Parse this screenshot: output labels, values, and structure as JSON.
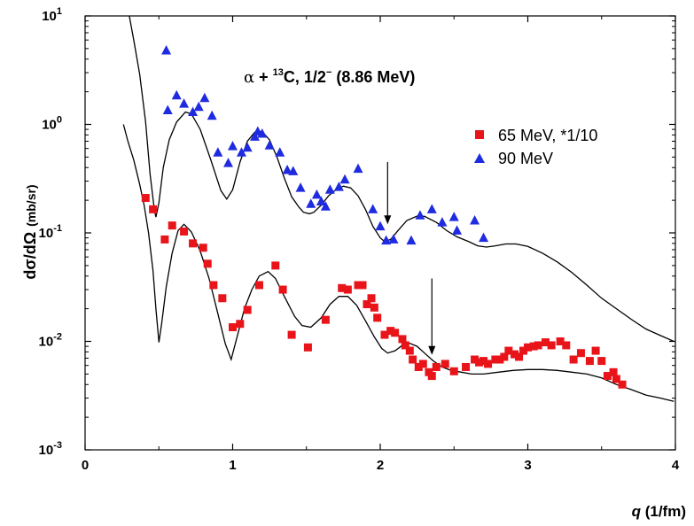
{
  "chart_data": {
    "type": "scatter",
    "title": "",
    "annotation": {
      "alpha": "α",
      "plus": " + ",
      "mass": "13",
      "element": "C,  1/2",
      "superscript": "−",
      "state": " (8.86 MeV)"
    },
    "xlabel": {
      "italic": "q",
      "rest": " (1/fm)"
    },
    "ylabel": {
      "main": "dσ/dΩ",
      "unit": "(mb/sr)"
    },
    "x_range": [
      0,
      4
    ],
    "y_range": [
      0.001,
      10
    ],
    "y_scale": "log",
    "grid": false,
    "legend_position": "top-right",
    "x_ticks": [
      "0",
      "1",
      "2",
      "3",
      "4"
    ],
    "y_ticks": [
      {
        "value": 0.001,
        "base": "10",
        "exp": "-3"
      },
      {
        "value": 0.01,
        "base": "10",
        "exp": "-2"
      },
      {
        "value": 0.1,
        "base": "10",
        "exp": "-1"
      },
      {
        "value": 1,
        "base": "10",
        "exp": "0"
      },
      {
        "value": 10,
        "base": "10",
        "exp": "1"
      }
    ],
    "series": [
      {
        "name": "65 MeV, *1/10",
        "marker": "square",
        "color": "#e8141a",
        "points": [
          [
            0.41,
            0.21
          ],
          [
            0.46,
            0.165
          ],
          [
            0.54,
            0.087
          ],
          [
            0.59,
            0.117
          ],
          [
            0.67,
            0.103
          ],
          [
            0.73,
            0.08
          ],
          [
            0.8,
            0.073
          ],
          [
            0.83,
            0.052
          ],
          [
            0.87,
            0.033
          ],
          [
            0.93,
            0.025
          ],
          [
            1.0,
            0.0135
          ],
          [
            1.05,
            0.0145
          ],
          [
            1.1,
            0.0195
          ],
          [
            1.18,
            0.033
          ],
          [
            1.29,
            0.05
          ],
          [
            1.34,
            0.03
          ],
          [
            1.4,
            0.0115
          ],
          [
            1.51,
            0.0088
          ],
          [
            1.63,
            0.0158
          ],
          [
            1.74,
            0.031
          ],
          [
            1.78,
            0.03
          ],
          [
            1.85,
            0.033
          ],
          [
            1.88,
            0.033
          ],
          [
            1.91,
            0.022
          ],
          [
            1.94,
            0.025
          ],
          [
            1.96,
            0.0205
          ],
          [
            1.98,
            0.0165
          ],
          [
            2.03,
            0.0115
          ],
          [
            2.07,
            0.0125
          ],
          [
            2.1,
            0.012
          ],
          [
            2.15,
            0.0105
          ],
          [
            2.17,
            0.0092
          ],
          [
            2.2,
            0.0082
          ],
          [
            2.22,
            0.0068
          ],
          [
            2.26,
            0.0058
          ],
          [
            2.29,
            0.0062
          ],
          [
            2.33,
            0.0052
          ],
          [
            2.35,
            0.0048
          ],
          [
            2.38,
            0.0058
          ],
          [
            2.44,
            0.0062
          ],
          [
            2.5,
            0.0053
          ],
          [
            2.58,
            0.0058
          ],
          [
            2.64,
            0.0068
          ],
          [
            2.67,
            0.0064
          ],
          [
            2.7,
            0.0066
          ],
          [
            2.73,
            0.0062
          ],
          [
            2.78,
            0.0068
          ],
          [
            2.81,
            0.0068
          ],
          [
            2.84,
            0.0072
          ],
          [
            2.87,
            0.0082
          ],
          [
            2.91,
            0.0076
          ],
          [
            2.94,
            0.0072
          ],
          [
            2.97,
            0.0082
          ],
          [
            3.0,
            0.0088
          ],
          [
            3.04,
            0.009
          ],
          [
            3.07,
            0.0092
          ],
          [
            3.12,
            0.0098
          ],
          [
            3.16,
            0.0092
          ],
          [
            3.22,
            0.01
          ],
          [
            3.26,
            0.0092
          ],
          [
            3.31,
            0.0068
          ],
          [
            3.36,
            0.0078
          ],
          [
            3.42,
            0.0066
          ],
          [
            3.46,
            0.0082
          ],
          [
            3.5,
            0.0066
          ],
          [
            3.54,
            0.0048
          ],
          [
            3.58,
            0.0052
          ],
          [
            3.6,
            0.0045
          ],
          [
            3.64,
            0.004
          ]
        ]
      },
      {
        "name": "90 MeV",
        "marker": "triangle",
        "color": "#1f2be0",
        "points": [
          [
            0.55,
            4.8
          ],
          [
            0.56,
            1.35
          ],
          [
            0.62,
            1.85
          ],
          [
            0.67,
            1.55
          ],
          [
            0.73,
            1.3
          ],
          [
            0.77,
            1.45
          ],
          [
            0.81,
            1.75
          ],
          [
            0.86,
            1.2
          ],
          [
            0.9,
            0.55
          ],
          [
            0.97,
            0.44
          ],
          [
            1.0,
            0.63
          ],
          [
            1.06,
            0.55
          ],
          [
            1.1,
            0.61
          ],
          [
            1.15,
            0.77
          ],
          [
            1.17,
            0.86
          ],
          [
            1.2,
            0.82
          ],
          [
            1.25,
            0.64
          ],
          [
            1.32,
            0.55
          ],
          [
            1.37,
            0.38
          ],
          [
            1.41,
            0.37
          ],
          [
            1.46,
            0.26
          ],
          [
            1.53,
            0.185
          ],
          [
            1.57,
            0.225
          ],
          [
            1.6,
            0.195
          ],
          [
            1.63,
            0.175
          ],
          [
            1.66,
            0.25
          ],
          [
            1.72,
            0.265
          ],
          [
            1.76,
            0.31
          ],
          [
            1.85,
            0.39
          ],
          [
            1.95,
            0.165
          ],
          [
            2.0,
            0.115
          ],
          [
            2.04,
            0.085
          ],
          [
            2.09,
            0.087
          ],
          [
            2.21,
            0.085
          ],
          [
            2.27,
            0.145
          ],
          [
            2.35,
            0.165
          ],
          [
            2.42,
            0.125
          ],
          [
            2.5,
            0.14
          ],
          [
            2.52,
            0.105
          ],
          [
            2.64,
            0.13
          ],
          [
            2.7,
            0.09
          ]
        ]
      }
    ],
    "curves": [
      {
        "name": "fit-90-mev",
        "points": [
          [
            0.3,
            10
          ],
          [
            0.33,
            6.0
          ],
          [
            0.37,
            2.9
          ],
          [
            0.41,
            1.05
          ],
          [
            0.44,
            0.35
          ],
          [
            0.47,
            0.16
          ],
          [
            0.48,
            0.14
          ],
          [
            0.5,
            0.19
          ],
          [
            0.53,
            0.4
          ],
          [
            0.57,
            0.72
          ],
          [
            0.62,
            1.05
          ],
          [
            0.68,
            1.3
          ],
          [
            0.72,
            1.25
          ],
          [
            0.78,
            0.9
          ],
          [
            0.85,
            0.48
          ],
          [
            0.92,
            0.245
          ],
          [
            0.96,
            0.205
          ],
          [
            1.0,
            0.25
          ],
          [
            1.05,
            0.45
          ],
          [
            1.1,
            0.7
          ],
          [
            1.15,
            0.85
          ],
          [
            1.2,
            0.86
          ],
          [
            1.25,
            0.72
          ],
          [
            1.3,
            0.5
          ],
          [
            1.35,
            0.32
          ],
          [
            1.4,
            0.215
          ],
          [
            1.45,
            0.172
          ],
          [
            1.48,
            0.155
          ],
          [
            1.52,
            0.15
          ],
          [
            1.55,
            0.155
          ],
          [
            1.6,
            0.18
          ],
          [
            1.65,
            0.22
          ],
          [
            1.7,
            0.25
          ],
          [
            1.75,
            0.27
          ],
          [
            1.8,
            0.26
          ],
          [
            1.85,
            0.22
          ],
          [
            1.9,
            0.165
          ],
          [
            1.95,
            0.115
          ],
          [
            2.0,
            0.09
          ],
          [
            2.03,
            0.083
          ],
          [
            2.07,
            0.087
          ],
          [
            2.12,
            0.105
          ],
          [
            2.18,
            0.13
          ],
          [
            2.25,
            0.143
          ],
          [
            2.3,
            0.142
          ],
          [
            2.38,
            0.125
          ],
          [
            2.45,
            0.105
          ],
          [
            2.52,
            0.092
          ],
          [
            2.6,
            0.083
          ],
          [
            2.66,
            0.076
          ],
          [
            2.72,
            0.074
          ],
          [
            2.78,
            0.076
          ],
          [
            2.85,
            0.079
          ],
          [
            2.92,
            0.079
          ],
          [
            3.0,
            0.075
          ],
          [
            3.1,
            0.065
          ],
          [
            3.2,
            0.054
          ],
          [
            3.3,
            0.043
          ],
          [
            3.4,
            0.033
          ],
          [
            3.5,
            0.025
          ],
          [
            3.6,
            0.02
          ],
          [
            3.7,
            0.016
          ],
          [
            3.8,
            0.013
          ],
          [
            3.9,
            0.0113
          ],
          [
            3.99,
            0.01
          ]
        ]
      },
      {
        "name": "fit-65-mev",
        "points": [
          [
            0.26,
            1.0
          ],
          [
            0.29,
            0.7
          ],
          [
            0.33,
            0.47
          ],
          [
            0.37,
            0.28
          ],
          [
            0.4,
            0.18
          ],
          [
            0.43,
            0.1
          ],
          [
            0.46,
            0.045
          ],
          [
            0.48,
            0.02
          ],
          [
            0.5,
            0.0098
          ],
          [
            0.52,
            0.015
          ],
          [
            0.55,
            0.032
          ],
          [
            0.59,
            0.065
          ],
          [
            0.63,
            0.105
          ],
          [
            0.67,
            0.12
          ],
          [
            0.72,
            0.102
          ],
          [
            0.78,
            0.068
          ],
          [
            0.84,
            0.038
          ],
          [
            0.9,
            0.018
          ],
          [
            0.95,
            0.0095
          ],
          [
            0.99,
            0.0068
          ],
          [
            1.03,
            0.011
          ],
          [
            1.08,
            0.02
          ],
          [
            1.13,
            0.03
          ],
          [
            1.18,
            0.04
          ],
          [
            1.24,
            0.044
          ],
          [
            1.29,
            0.038
          ],
          [
            1.35,
            0.026
          ],
          [
            1.42,
            0.017
          ],
          [
            1.47,
            0.014
          ],
          [
            1.53,
            0.0135
          ],
          [
            1.6,
            0.0165
          ],
          [
            1.66,
            0.022
          ],
          [
            1.72,
            0.026
          ],
          [
            1.78,
            0.026
          ],
          [
            1.84,
            0.0215
          ],
          [
            1.9,
            0.0155
          ],
          [
            1.96,
            0.011
          ],
          [
            2.01,
            0.0086
          ],
          [
            2.05,
            0.0078
          ],
          [
            2.1,
            0.0082
          ],
          [
            2.15,
            0.0092
          ],
          [
            2.2,
            0.0096
          ],
          [
            2.25,
            0.009
          ],
          [
            2.3,
            0.0078
          ],
          [
            2.36,
            0.0066
          ],
          [
            2.42,
            0.0058
          ],
          [
            2.48,
            0.0054
          ],
          [
            2.55,
            0.0052
          ],
          [
            2.62,
            0.005
          ],
          [
            2.7,
            0.005
          ],
          [
            2.8,
            0.0052
          ],
          [
            2.9,
            0.0054
          ],
          [
            3.0,
            0.0055
          ],
          [
            3.1,
            0.0055
          ],
          [
            3.2,
            0.0054
          ],
          [
            3.3,
            0.0052
          ],
          [
            3.4,
            0.005
          ],
          [
            3.5,
            0.0046
          ],
          [
            3.6,
            0.004
          ],
          [
            3.7,
            0.0036
          ],
          [
            3.8,
            0.0032
          ],
          [
            3.9,
            0.003
          ],
          [
            3.99,
            0.0028
          ]
        ]
      }
    ],
    "arrows": [
      {
        "name": "arrow-90-mev",
        "x": 2.05,
        "y_top": 0.45,
        "y_tip": 0.12
      },
      {
        "name": "arrow-65-mev",
        "x": 2.35,
        "y_top": 0.038,
        "y_tip": 0.0075
      }
    ]
  }
}
